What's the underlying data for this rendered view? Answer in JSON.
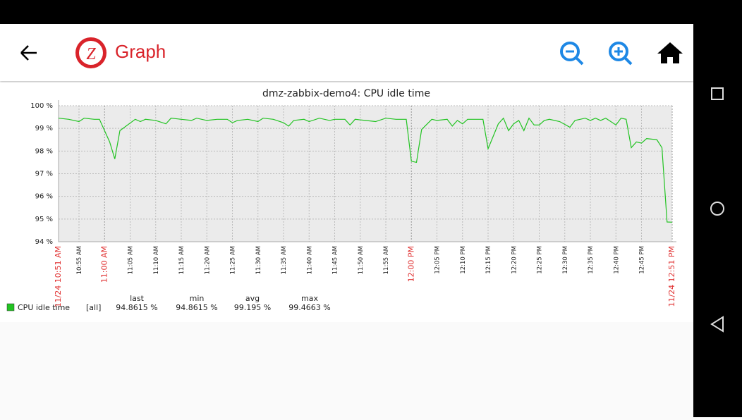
{
  "app_bar": {
    "title": "Graph"
  },
  "chart_data": {
    "type": "line",
    "title": "dmz-zabbix-demo4: CPU idle time",
    "x": [
      "10:51",
      "10:53",
      "10:55",
      "10:56",
      "10:58",
      "10:59",
      "11:01",
      "11:02",
      "11:03",
      "11:06",
      "11:07",
      "11:08",
      "11:10",
      "11:12",
      "11:13",
      "11:15",
      "11:17",
      "11:18",
      "11:20",
      "11:22",
      "11:24",
      "11:25",
      "11:26",
      "11:28",
      "11:30",
      "11:31",
      "11:33",
      "11:35",
      "11:36",
      "11:37",
      "11:39",
      "11:40",
      "11:42",
      "11:44",
      "11:45",
      "11:47",
      "11:48",
      "11:49",
      "11:51",
      "11:53",
      "11:55",
      "11:57",
      "11:58",
      "11:59",
      "12:00",
      "12:01",
      "12:02",
      "12:04",
      "12:05",
      "12:07",
      "12:08",
      "12:09",
      "12:10",
      "12:11",
      "12:13",
      "12:14",
      "12:15",
      "12:17",
      "12:18",
      "12:19",
      "12:20",
      "12:21",
      "12:22",
      "12:23",
      "12:24",
      "12:25",
      "12:26",
      "12:27",
      "12:29",
      "12:31",
      "12:32",
      "12:34",
      "12:35",
      "12:36",
      "12:37",
      "12:38",
      "12:39",
      "12:40",
      "12:41",
      "12:42",
      "12:43",
      "12:44",
      "12:45",
      "12:46",
      "12:48",
      "12:49",
      "12:50",
      "12:51"
    ],
    "series": [
      {
        "name": "CPU idle time",
        "color": "#22c322",
        "values": [
          99.45,
          99.4,
          99.3,
          99.45,
          99.4,
          99.4,
          98.4,
          97.65,
          98.9,
          99.4,
          99.3,
          99.4,
          99.35,
          99.2,
          99.45,
          99.4,
          99.35,
          99.45,
          99.35,
          99.4,
          99.4,
          99.25,
          99.35,
          99.4,
          99.3,
          99.45,
          99.4,
          99.25,
          99.1,
          99.35,
          99.4,
          99.3,
          99.45,
          99.35,
          99.4,
          99.4,
          99.15,
          99.4,
          99.35,
          99.3,
          99.45,
          99.4,
          99.4,
          99.4,
          97.55,
          97.5,
          98.95,
          99.4,
          99.35,
          99.4,
          99.1,
          99.35,
          99.2,
          99.4,
          99.4,
          99.4,
          98.1,
          99.2,
          99.45,
          98.9,
          99.2,
          99.35,
          98.9,
          99.45,
          99.15,
          99.15,
          99.35,
          99.4,
          99.3,
          99.05,
          99.35,
          99.45,
          99.35,
          99.45,
          99.35,
          99.45,
          99.3,
          99.15,
          99.45,
          99.4,
          98.15,
          98.4,
          98.35,
          98.55,
          98.5,
          98.15,
          94.87,
          94.86
        ]
      }
    ],
    "ylim": [
      94,
      100
    ],
    "yticks": [
      {
        "value": 94,
        "label": "94 %"
      },
      {
        "value": 95,
        "label": "95 %"
      },
      {
        "value": 96,
        "label": "96 %"
      },
      {
        "value": 97,
        "label": "97 %"
      },
      {
        "value": 98,
        "label": "98 %"
      },
      {
        "value": 99,
        "label": "99 %"
      },
      {
        "value": 100,
        "label": "100 %"
      }
    ],
    "xlim": [
      "10:51",
      "12:51"
    ],
    "xticks": [
      {
        "value": "10:51",
        "label": "11/24 10:51 AM"
      },
      {
        "value": "10:55",
        "label": "10:55 AM"
      },
      {
        "value": "11:00",
        "label": "11:00 AM"
      },
      {
        "value": "11:05",
        "label": "11:05 AM"
      },
      {
        "value": "11:10",
        "label": "11:10 AM"
      },
      {
        "value": "11:15",
        "label": "11:15 AM"
      },
      {
        "value": "11:20",
        "label": "11:20 AM"
      },
      {
        "value": "11:25",
        "label": "11:25 AM"
      },
      {
        "value": "11:30",
        "label": "11:30 AM"
      },
      {
        "value": "11:35",
        "label": "11:35 AM"
      },
      {
        "value": "11:40",
        "label": "11:40 AM"
      },
      {
        "value": "11:45",
        "label": "11:45 AM"
      },
      {
        "value": "11:50",
        "label": "11:50 AM"
      },
      {
        "value": "11:55",
        "label": "11:55 AM"
      },
      {
        "value": "12:00",
        "label": "12:00 PM"
      },
      {
        "value": "12:05",
        "label": "12:05 PM"
      },
      {
        "value": "12:10",
        "label": "12:10 PM"
      },
      {
        "value": "12:15",
        "label": "12:15 PM"
      },
      {
        "value": "12:20",
        "label": "12:20 PM"
      },
      {
        "value": "12:25",
        "label": "12:25 PM"
      },
      {
        "value": "12:30",
        "label": "12:30 PM"
      },
      {
        "value": "12:35",
        "label": "12:35 PM"
      },
      {
        "value": "12:40",
        "label": "12:40 PM"
      },
      {
        "value": "12:45",
        "label": "12:45 PM"
      },
      {
        "value": "12:51",
        "label": "11/24 12:51 PM"
      }
    ],
    "major_tick_color": "#e03030",
    "grid": true,
    "legend_columns": [
      "last",
      "min",
      "avg",
      "max"
    ],
    "legend_scope": "[all]",
    "legend_stats": [
      {
        "value": 94.8615,
        "label": "94.8615 %"
      },
      {
        "value": 94.8615,
        "label": "94.8615 %"
      },
      {
        "value": 99.195,
        "label": "99.195 %"
      },
      {
        "value": 99.4663,
        "label": "99.4663 %"
      }
    ]
  }
}
